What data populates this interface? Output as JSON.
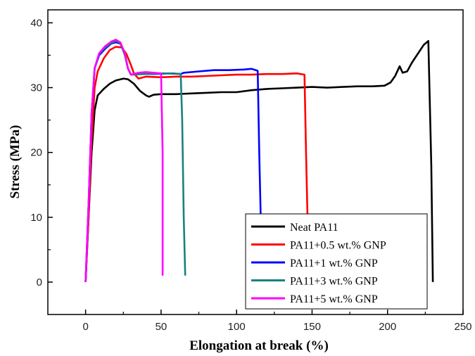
{
  "chart_data": {
    "type": "line",
    "title": "",
    "xlabel": "Elongation at break (%)",
    "ylabel": "Stress (MPa)",
    "xlim": [
      -25,
      250
    ],
    "ylim": [
      -5,
      42
    ],
    "xticks": [
      0,
      50,
      100,
      150,
      200,
      250
    ],
    "xtick_labels": [
      "0",
      "50",
      "100",
      "150",
      "200",
      "250"
    ],
    "yticks": [
      0,
      10,
      20,
      30,
      40
    ],
    "ytick_labels": [
      "0",
      "10",
      "20",
      "30",
      "40"
    ],
    "grid": false,
    "legend_position": "bottom-right",
    "series": [
      {
        "name": "Neat PA11",
        "color": "#000000",
        "points": [
          [
            0,
            0
          ],
          [
            2,
            10
          ],
          [
            4,
            20
          ],
          [
            6,
            26.5
          ],
          [
            8,
            28.8
          ],
          [
            12,
            29.8
          ],
          [
            16,
            30.6
          ],
          [
            20,
            31.1
          ],
          [
            25,
            31.4
          ],
          [
            28,
            31.3
          ],
          [
            32,
            30.6
          ],
          [
            36,
            29.5
          ],
          [
            40,
            28.8
          ],
          [
            42,
            28.6
          ],
          [
            45,
            28.9
          ],
          [
            50,
            29.0
          ],
          [
            60,
            29.0
          ],
          [
            70,
            29.1
          ],
          [
            80,
            29.2
          ],
          [
            90,
            29.3
          ],
          [
            100,
            29.3
          ],
          [
            110,
            29.6
          ],
          [
            120,
            29.8
          ],
          [
            130,
            29.9
          ],
          [
            140,
            30.0
          ],
          [
            150,
            30.1
          ],
          [
            160,
            30.0
          ],
          [
            170,
            30.1
          ],
          [
            180,
            30.2
          ],
          [
            190,
            30.2
          ],
          [
            198,
            30.3
          ],
          [
            202,
            30.8
          ],
          [
            205,
            31.8
          ],
          [
            208,
            33.3
          ],
          [
            210,
            32.3
          ],
          [
            213,
            32.5
          ],
          [
            216,
            33.8
          ],
          [
            220,
            35.2
          ],
          [
            224,
            36.6
          ],
          [
            227,
            37.2
          ],
          [
            229,
            18
          ],
          [
            230,
            0
          ]
        ]
      },
      {
        "name": "PA11+0.5 wt.% GNP",
        "color": "#ff0000",
        "points": [
          [
            0,
            0
          ],
          [
            2,
            10
          ],
          [
            4,
            22
          ],
          [
            6,
            30
          ],
          [
            8,
            32.5
          ],
          [
            12,
            34.5
          ],
          [
            16,
            35.8
          ],
          [
            20,
            36.3
          ],
          [
            24,
            36.2
          ],
          [
            27,
            35.2
          ],
          [
            30,
            33.5
          ],
          [
            32,
            32.2
          ],
          [
            35,
            31.4
          ],
          [
            40,
            31.7
          ],
          [
            50,
            31.6
          ],
          [
            60,
            31.7
          ],
          [
            70,
            31.7
          ],
          [
            80,
            31.8
          ],
          [
            90,
            31.9
          ],
          [
            100,
            32.0
          ],
          [
            110,
            32.0
          ],
          [
            120,
            32.1
          ],
          [
            130,
            32.1
          ],
          [
            140,
            32.2
          ],
          [
            145,
            32.0
          ],
          [
            146,
            20
          ],
          [
            147,
            10
          ]
        ]
      },
      {
        "name": "PA11+1 wt.% GNP",
        "color": "#0000ff",
        "points": [
          [
            0,
            0
          ],
          [
            2,
            12
          ],
          [
            4,
            26
          ],
          [
            6,
            33
          ],
          [
            9,
            35.0
          ],
          [
            13,
            36.0
          ],
          [
            17,
            36.8
          ],
          [
            20,
            37.0
          ],
          [
            23,
            36.8
          ],
          [
            26,
            35.2
          ],
          [
            28,
            33.0
          ],
          [
            30,
            32.0
          ],
          [
            35,
            32.1
          ],
          [
            45,
            32.1
          ],
          [
            55,
            32.2
          ],
          [
            63,
            32.1
          ],
          [
            65,
            32.3
          ],
          [
            75,
            32.5
          ],
          [
            85,
            32.7
          ],
          [
            95,
            32.7
          ],
          [
            105,
            32.8
          ],
          [
            110,
            32.9
          ],
          [
            114,
            32.6
          ],
          [
            115,
            20
          ],
          [
            116,
            10
          ]
        ]
      },
      {
        "name": "PA11+3 wt.% GNP",
        "color": "#1a8080",
        "points": [
          [
            0,
            0
          ],
          [
            2,
            12
          ],
          [
            4,
            26
          ],
          [
            6,
            33
          ],
          [
            9,
            35.2
          ],
          [
            13,
            36.2
          ],
          [
            17,
            36.9
          ],
          [
            20,
            37.2
          ],
          [
            23,
            36.9
          ],
          [
            26,
            35.0
          ],
          [
            28,
            33.0
          ],
          [
            30,
            32.0
          ],
          [
            40,
            32.1
          ],
          [
            50,
            32.2
          ],
          [
            58,
            32.2
          ],
          [
            63,
            32.1
          ],
          [
            64,
            25
          ],
          [
            65,
            10
          ],
          [
            66,
            1
          ]
        ]
      },
      {
        "name": "PA11+5 wt.% GNP",
        "color": "#ff00ff",
        "points": [
          [
            0,
            0
          ],
          [
            2,
            12
          ],
          [
            4,
            26
          ],
          [
            6,
            33
          ],
          [
            9,
            35.3
          ],
          [
            13,
            36.4
          ],
          [
            17,
            37.1
          ],
          [
            20,
            37.4
          ],
          [
            23,
            37.0
          ],
          [
            26,
            35.3
          ],
          [
            28,
            33.0
          ],
          [
            30,
            32.0
          ],
          [
            35,
            32.3
          ],
          [
            40,
            32.4
          ],
          [
            45,
            32.3
          ],
          [
            50,
            32.2
          ],
          [
            51,
            20
          ],
          [
            51,
            1
          ]
        ]
      }
    ]
  }
}
